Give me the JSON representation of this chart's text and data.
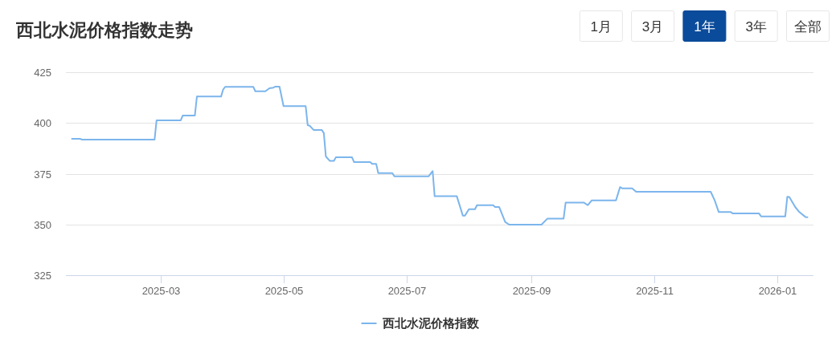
{
  "chart_data": {
    "type": "line",
    "title": "西北水泥价格指数走势",
    "annotations": [
      "1月",
      "3月",
      "1年",
      "3年",
      "全部"
    ],
    "x": [
      "2025-01-16",
      "2025-01-20",
      "2025-01-21",
      "2025-02-26",
      "2025-02-27",
      "2025-03-11",
      "2025-03-12",
      "2025-03-18",
      "2025-03-19",
      "2025-03-31",
      "2025-04-01",
      "2025-04-02",
      "2025-04-16",
      "2025-04-17",
      "2025-04-22",
      "2025-04-24",
      "2025-04-26",
      "2025-04-27",
      "2025-04-29",
      "2025-05-01",
      "2025-05-12",
      "2025-05-13",
      "2025-05-14",
      "2025-05-16",
      "2025-05-20",
      "2025-05-21",
      "2025-05-22",
      "2025-05-24",
      "2025-05-26",
      "2025-05-27",
      "2025-06-04",
      "2025-06-05",
      "2025-06-13",
      "2025-06-14",
      "2025-06-16",
      "2025-06-17",
      "2025-06-24",
      "2025-06-25",
      "2025-07-12",
      "2025-07-14",
      "2025-07-15",
      "2025-07-26",
      "2025-07-29",
      "2025-07-30",
      "2025-08-01",
      "2025-08-04",
      "2025-08-05",
      "2025-08-13",
      "2025-08-14",
      "2025-08-16",
      "2025-08-19",
      "2025-08-21",
      "2025-09-06",
      "2025-09-09",
      "2025-09-17",
      "2025-09-18",
      "2025-09-27",
      "2025-09-29",
      "2025-10-01",
      "2025-10-13",
      "2025-10-15",
      "2025-10-16",
      "2025-10-21",
      "2025-10-23",
      "2025-11-29",
      "2025-12-01",
      "2025-12-03",
      "2025-12-09",
      "2025-12-10",
      "2025-12-23",
      "2025-12-24",
      "2026-01-05",
      "2026-01-06",
      "2026-01-07",
      "2026-01-10",
      "2026-01-12",
      "2026-01-15",
      "2026-01-16"
    ],
    "series": [
      {
        "name": "西北水泥价格指数",
        "color": "#7cb5ec",
        "values": [
          392.2,
          392.2,
          391.8,
          391.8,
          401.3,
          401.3,
          403.7,
          403.7,
          413.0,
          413.0,
          416.4,
          417.8,
          417.8,
          415.6,
          415.6,
          417.1,
          417.4,
          417.9,
          417.9,
          408.3,
          408.3,
          398.9,
          398.6,
          396.5,
          396.5,
          395.0,
          383.5,
          381.3,
          381.3,
          383.1,
          383.1,
          380.7,
          380.7,
          379.8,
          379.8,
          375.3,
          375.3,
          373.7,
          373.7,
          376.3,
          363.9,
          363.9,
          354.3,
          354.3,
          357.5,
          357.5,
          359.5,
          359.5,
          358.6,
          358.6,
          351.2,
          349.9,
          349.9,
          352.9,
          352.9,
          360.8,
          360.8,
          359.5,
          361.9,
          361.9,
          368.4,
          367.8,
          367.8,
          366.1,
          366.1,
          361.8,
          356.1,
          356.1,
          355.4,
          355.4,
          354.0,
          354.0,
          363.6,
          363.5,
          358.5,
          356.1,
          353.7,
          353.6
        ]
      }
    ],
    "xlim": [
      "2025-01-13",
      "2026-01-19"
    ],
    "xticks": [
      "2025-03",
      "2025-05",
      "2025-07",
      "2025-09",
      "2025-11",
      "2026-01"
    ],
    "ylim": [
      325,
      425
    ],
    "yticks": [
      325,
      350,
      375,
      400,
      425
    ],
    "grid": "y",
    "legend": "bottom",
    "line_style": "solid"
  }
}
